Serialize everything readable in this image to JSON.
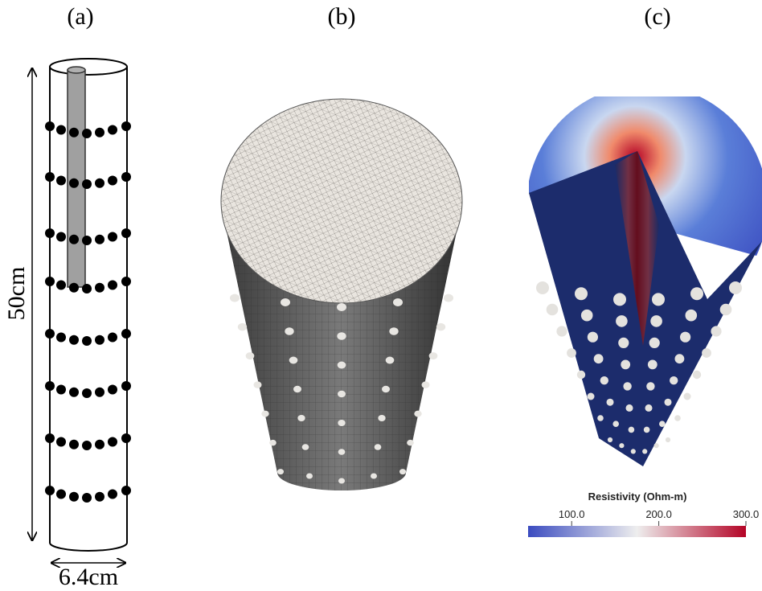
{
  "panels": [
    {
      "label": "(a)",
      "height_label": "50cm",
      "width_label": "6.4cm"
    },
    {
      "label": "(b)"
    },
    {
      "label": "(c)",
      "colorbar": {
        "title": "Resistivity (Ohm-m)",
        "lim": [
          50,
          300
        ],
        "ticks": [
          {
            "value": 100,
            "label": "100.0"
          },
          {
            "value": 200,
            "label": "200.0"
          },
          {
            "value": 300,
            "label": "300.0"
          }
        ]
      }
    }
  ]
}
